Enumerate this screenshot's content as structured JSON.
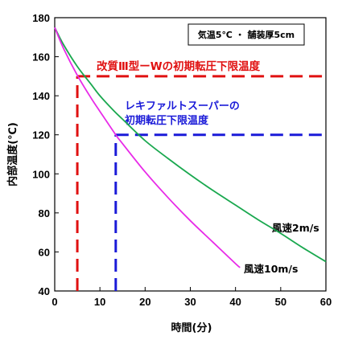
{
  "colors": {
    "wind2": "#1aa84f",
    "wind10": "#e82be8",
    "red_threshold": "#e01010",
    "blue_threshold": "#1a1ad8",
    "axis": "#000000"
  },
  "chart_data": {
    "type": "line",
    "xlabel": "時間(分)",
    "ylabel": "内部温度(℃)",
    "xlim": [
      0,
      60
    ],
    "ylim": [
      40,
      180
    ],
    "xticks": [
      "0",
      "10",
      "20",
      "30",
      "40",
      "50",
      "60"
    ],
    "yticks": [
      "40",
      "60",
      "80",
      "100",
      "120",
      "140",
      "160",
      "180"
    ],
    "grid": false,
    "condition_box": "気温5℃ ・ 舗装厚5cm",
    "series": [
      {
        "name": "風速2m/s",
        "x": [
          0,
          2,
          5,
          8,
          10,
          13,
          15,
          20,
          25,
          30,
          35,
          40,
          45,
          50,
          55,
          60
        ],
        "y": [
          175,
          166,
          155,
          146,
          140,
          132.5,
          128,
          117,
          108,
          99.5,
          91.5,
          84,
          76.5,
          69.5,
          62,
          55
        ]
      },
      {
        "name": "風速10m/s",
        "x": [
          0,
          2,
          5,
          8,
          10,
          13.5,
          15,
          20,
          25,
          30,
          35,
          40,
          41
        ],
        "y": [
          175,
          164,
          150.5,
          139,
          132,
          120,
          115.5,
          101,
          88,
          76,
          65,
          54,
          52
        ]
      }
    ],
    "thresholds": [
      {
        "label": "改質Ⅲ型ーWの初期転圧下限温度",
        "y": 150,
        "x_cross": 5,
        "color": "red"
      },
      {
        "label_line1": "レキファルトスーパーの",
        "label_line2": "初期転圧下限温度",
        "y": 120,
        "x_cross": 13.5,
        "color": "blue"
      }
    ]
  }
}
